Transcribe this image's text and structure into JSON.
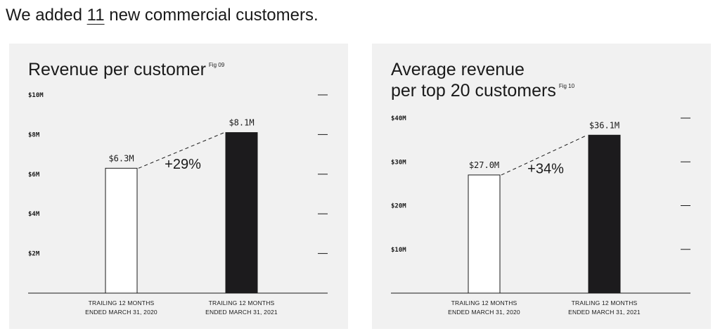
{
  "headline": {
    "before": "We added ",
    "number": "11",
    "after": " new commercial customers."
  },
  "chart_data": [
    {
      "type": "bar",
      "title": "Revenue per customer",
      "figure_ref": "Fig 09",
      "ylim": [
        0,
        10
      ],
      "yticks": [
        "$10M",
        "$8M",
        "$6M",
        "$4M",
        "$2M"
      ],
      "ytick_values": [
        10,
        8,
        6,
        4,
        2
      ],
      "categories": [
        [
          "TRAILING 12 MONTHS",
          "ENDED MARCH 31, 2020"
        ],
        [
          "TRAILING 12 MONTHS",
          "ENDED MARCH 31, 2021"
        ]
      ],
      "values": [
        6.3,
        8.1
      ],
      "value_labels": [
        "$6.3M",
        "$8.1M"
      ],
      "change_label": "+29%",
      "bar_colors": [
        "#ffffff",
        "#1c1b1d"
      ],
      "grid": false
    },
    {
      "type": "bar",
      "title": "Average revenue per top 20 customers",
      "figure_ref": "Fig 10",
      "ylim": [
        0,
        40
      ],
      "yticks": [
        "$40M",
        "$30M",
        "$20M",
        "$10M"
      ],
      "ytick_values": [
        40,
        30,
        20,
        10
      ],
      "categories": [
        [
          "TRAILING 12 MONTHS",
          "ENDED MARCH 31, 2020"
        ],
        [
          "TRAILING 12 MONTHS",
          "ENDED MARCH 31, 2021"
        ]
      ],
      "values": [
        27.0,
        36.1
      ],
      "value_labels": [
        "$27.0M",
        "$36.1M"
      ],
      "change_label": "+34%",
      "bar_colors": [
        "#ffffff",
        "#1c1b1d"
      ],
      "grid": false
    }
  ]
}
